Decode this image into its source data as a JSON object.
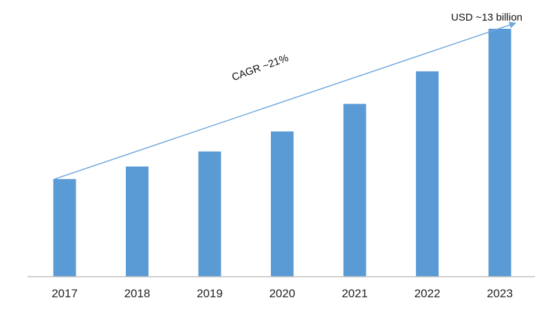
{
  "chart_data": {
    "type": "bar",
    "categories": [
      "2017",
      "2018",
      "2019",
      "2020",
      "2021",
      "2022",
      "2023"
    ],
    "values": [
      3.9,
      4.4,
      5.0,
      5.8,
      6.9,
      8.2,
      9.9
    ],
    "ylim": [
      0,
      10.5
    ],
    "grid": false,
    "bar_color": "#5b9bd5",
    "trend_color": "#6fa8dc",
    "axis_color": "#bfbfbf",
    "annotations": {
      "cagr": "CAGR ~21%",
      "end_value": "USD ~13 billion"
    }
  }
}
